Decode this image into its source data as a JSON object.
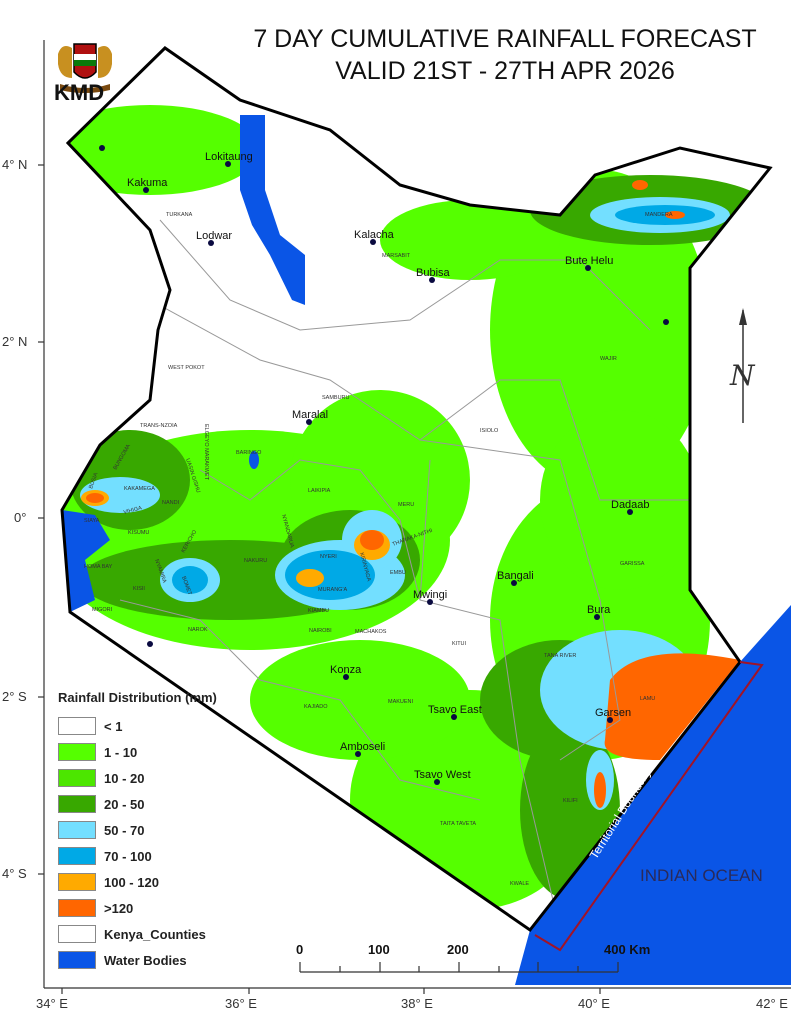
{
  "title": {
    "line1": "7 DAY CUMULATIVE RAINFALL FORECAST",
    "line2": "VALID 21ST - 27TH APR 2026"
  },
  "agency": "KMD",
  "legend": {
    "title": "Rainfall Distribution (mm)",
    "items": [
      {
        "label": "< 1",
        "color": "#ffffff"
      },
      {
        "label": "1 - 10",
        "color": "#55ff00"
      },
      {
        "label": "10 - 20",
        "color": "#4ce600"
      },
      {
        "label": "20 - 50",
        "color": "#38a800"
      },
      {
        "label": "50 - 70",
        "color": "#73dfff"
      },
      {
        "label": "70 - 100",
        "color": "#00a9e6"
      },
      {
        "label": "100 - 120",
        "color": "#ffaa00"
      },
      {
        "label": ">120",
        "color": "#ff6600"
      },
      {
        "label": "Kenya_Counties",
        "color": "#ffffff"
      },
      {
        "label": "Water Bodies",
        "color": "#0050e6"
      }
    ]
  },
  "axes": {
    "lon": [
      "34° E",
      "36° E",
      "38° E",
      "40° E",
      "42° E"
    ],
    "lat": [
      "4° N",
      "2° N",
      "0°",
      "2° S",
      "4° S"
    ]
  },
  "scale": {
    "labels": [
      "0",
      "100",
      "200",
      "400 Km"
    ]
  },
  "labels": {
    "ocean": "INDIAN OCEAN",
    "boundary": "Territorial Boundary",
    "north": "N"
  },
  "towns": [
    "Lokitaung",
    "Kakuma",
    "Lodwar",
    "Kalacha",
    "Bubisa",
    "Bute Helu",
    "Maralal",
    "Dadaab",
    "Bangali",
    "Mwingi",
    "Bura",
    "Konza",
    "Tsavo East",
    "Garsen",
    "Amboseli",
    "Tsavo West"
  ],
  "counties": [
    "TURKANA",
    "MARSABIT",
    "MANDERA",
    "WAJIR",
    "WEST POKOT",
    "SAMBURU",
    "ISIOLO",
    "TRANS-NZOIA",
    "ELGEYO MARAKWET",
    "BARINGO",
    "UASIN GISHU",
    "BUNGOMA",
    "BUSIA",
    "KAKAMEGA",
    "NANDI",
    "LAIKIPIA",
    "MERU",
    "SIAYA",
    "VIHIGA",
    "KISUMU",
    "NAKURU",
    "NYANDARUA",
    "NYERI",
    "THARAKA-NITHI",
    "KIRINYAGA",
    "EMBU",
    "HOMA BAY",
    "KISII",
    "NYAMIRA",
    "KERICHO",
    "BOMET",
    "MURANG'A",
    "KIAMBU",
    "NAIROBI",
    "MIGORI",
    "NAROK",
    "MACHAKOS",
    "KITUI",
    "GARISSA",
    "TANA RIVER",
    "LAMU",
    "KAJIADO",
    "MAKUENI",
    "KILIFI",
    "TAITA TAVETA",
    "KWALE"
  ]
}
